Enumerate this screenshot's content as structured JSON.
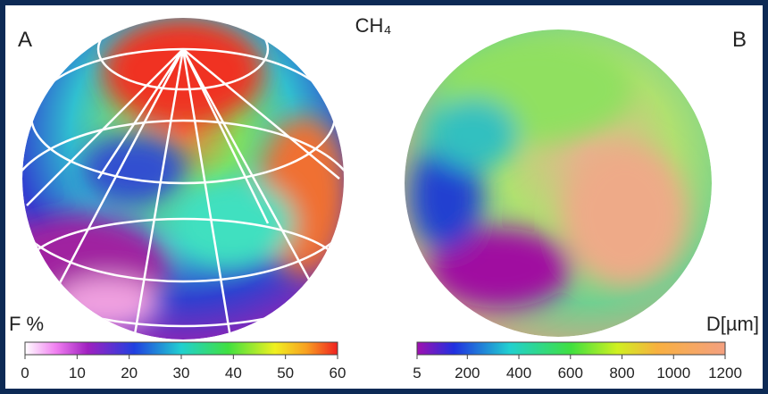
{
  "title": "CH₄",
  "panels": [
    {
      "label": "A",
      "colorbar": {
        "label": "F %",
        "range": [
          0,
          60
        ],
        "ticks": [
          0,
          10,
          20,
          30,
          40,
          50,
          60
        ]
      }
    },
    {
      "label": "B",
      "colorbar": {
        "label": "D[µm]",
        "range": [
          5,
          1200
        ],
        "ticks": [
          5,
          200,
          400,
          600,
          800,
          1000,
          1200
        ]
      }
    }
  ]
}
